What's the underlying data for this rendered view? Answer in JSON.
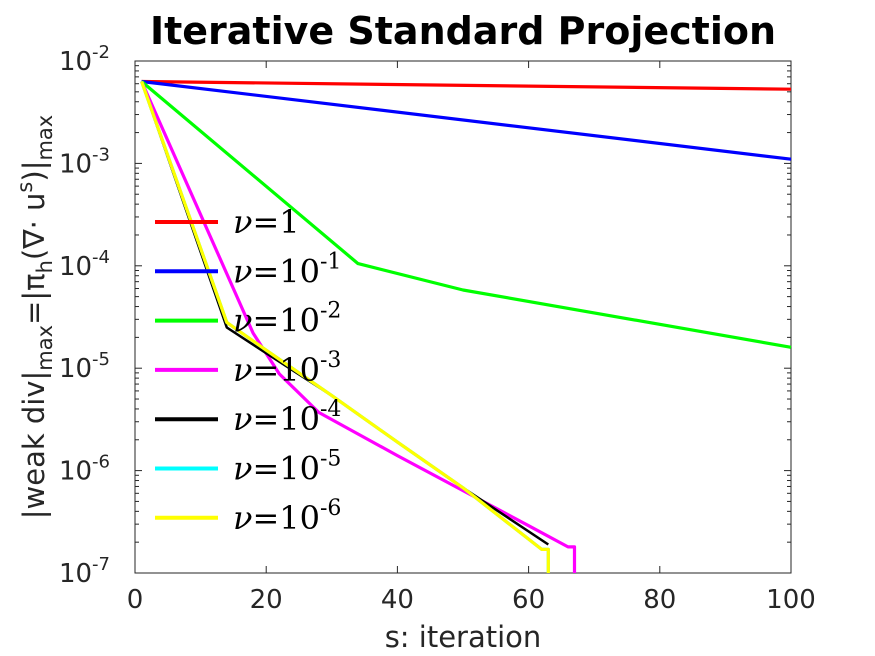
{
  "chart_data": {
    "type": "line",
    "title": "Iterative Standard Projection",
    "xlabel": "s: iteration",
    "ylabel": {
      "parts": [
        "|weak div|",
        "max",
        "=|π",
        "h",
        "(∇· u",
        "s",
        ")|",
        "max"
      ]
    },
    "xlim": [
      0,
      100
    ],
    "ylim": [
      1e-07,
      0.01
    ],
    "y_scale": "log",
    "grid": false,
    "legend_placement": "center-left",
    "x_ticks": [
      "0",
      "20",
      "40",
      "60",
      "80",
      "100"
    ],
    "y_ticks": [
      {
        "base": "10",
        "exp": "-7"
      },
      {
        "base": "10",
        "exp": "-6"
      },
      {
        "base": "10",
        "exp": "-5"
      },
      {
        "base": "10",
        "exp": "-4"
      },
      {
        "base": "10",
        "exp": "-3"
      },
      {
        "base": "10",
        "exp": "-2"
      }
    ],
    "series": [
      {
        "name": "ν=1",
        "legend": {
          "pre": "ν",
          "mid": "=1",
          "exp": ""
        },
        "color": "#ff0000",
        "points": [
          [
            1,
            0.0063
          ],
          [
            100,
            0.0053
          ]
        ]
      },
      {
        "name": "ν=10-1",
        "legend": {
          "pre": "ν",
          "mid": "=10",
          "exp": "-1"
        },
        "color": "#0000ff",
        "points": [
          [
            1,
            0.0063
          ],
          [
            100,
            0.0011
          ]
        ]
      },
      {
        "name": "ν=10-2",
        "legend": {
          "pre": "ν",
          "mid": "=10",
          "exp": "-2"
        },
        "color": "#00ff00",
        "points": [
          [
            1,
            0.0063
          ],
          [
            34,
            0.000105
          ],
          [
            50,
            5.8e-05
          ],
          [
            100,
            1.6e-05
          ]
        ]
      },
      {
        "name": "ν=10-3",
        "legend": {
          "pre": "ν",
          "mid": "=10",
          "exp": "-3"
        },
        "color": "#ff00ff",
        "points": [
          [
            1,
            0.0063
          ],
          [
            18,
            2.2e-05
          ],
          [
            22,
            8.8e-06
          ],
          [
            28,
            3.7e-06
          ],
          [
            40,
            1.4e-06
          ],
          [
            55,
            4.3e-07
          ],
          [
            60,
            2.9e-07
          ],
          [
            66,
            1.8e-07
          ],
          [
            67,
            1.8e-07
          ],
          [
            67,
            1e-07
          ]
        ]
      },
      {
        "name": "ν=10-4",
        "legend": {
          "pre": "ν",
          "mid": "=10",
          "exp": "-4"
        },
        "color": "#000000",
        "points": [
          [
            1,
            0.0063
          ],
          [
            14,
            2.5e-05
          ],
          [
            20,
            1.4e-05
          ],
          [
            30,
            5.4e-06
          ],
          [
            40,
            1.9e-06
          ],
          [
            50,
            6.8e-07
          ],
          [
            63,
            1.9e-07
          ]
        ]
      },
      {
        "name": "ν=10-5",
        "legend": {
          "pre": "ν",
          "mid": "=10",
          "exp": "-5"
        },
        "color": "#00ffff",
        "points": [
          [
            1,
            0.0063
          ],
          [
            14,
            2.8e-05
          ],
          [
            20,
            1.5e-05
          ],
          [
            30,
            5.4e-06
          ],
          [
            40,
            1.9e-06
          ],
          [
            50,
            6.8e-07
          ],
          [
            62,
            1.7e-07
          ],
          [
            63,
            1.7e-07
          ],
          [
            63,
            1e-07
          ]
        ]
      },
      {
        "name": "ν=10-6",
        "legend": {
          "pre": "ν",
          "mid": "=10",
          "exp": "-6"
        },
        "color": "#ffff00",
        "points": [
          [
            1,
            0.0063
          ],
          [
            14,
            2.8e-05
          ],
          [
            20,
            1.5e-05
          ],
          [
            30,
            5.4e-06
          ],
          [
            40,
            1.9e-06
          ],
          [
            50,
            6.8e-07
          ],
          [
            62,
            1.7e-07
          ],
          [
            63,
            1.7e-07
          ],
          [
            63,
            1e-07
          ]
        ]
      }
    ]
  }
}
